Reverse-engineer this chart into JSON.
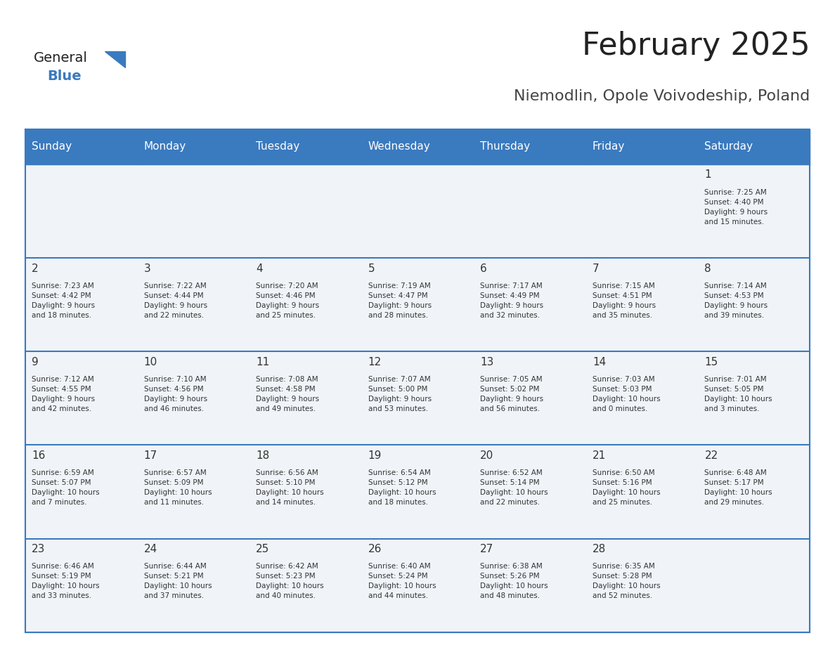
{
  "title": "February 2025",
  "subtitle": "Niemodlin, Opole Voivodeship, Poland",
  "header_bg_color": "#3a7abf",
  "header_text_color": "#ffffff",
  "cell_bg_color_odd": "#f0f4f8",
  "cell_bg_color_even": "#ffffff",
  "row_line_color": "#3a7abf",
  "text_color": "#333333",
  "days_of_week": [
    "Sunday",
    "Monday",
    "Tuesday",
    "Wednesday",
    "Thursday",
    "Friday",
    "Saturday"
  ],
  "weeks": [
    [
      {
        "day": "",
        "info": ""
      },
      {
        "day": "",
        "info": ""
      },
      {
        "day": "",
        "info": ""
      },
      {
        "day": "",
        "info": ""
      },
      {
        "day": "",
        "info": ""
      },
      {
        "day": "",
        "info": ""
      },
      {
        "day": "1",
        "info": "Sunrise: 7:25 AM\nSunset: 4:40 PM\nDaylight: 9 hours\nand 15 minutes."
      }
    ],
    [
      {
        "day": "2",
        "info": "Sunrise: 7:23 AM\nSunset: 4:42 PM\nDaylight: 9 hours\nand 18 minutes."
      },
      {
        "day": "3",
        "info": "Sunrise: 7:22 AM\nSunset: 4:44 PM\nDaylight: 9 hours\nand 22 minutes."
      },
      {
        "day": "4",
        "info": "Sunrise: 7:20 AM\nSunset: 4:46 PM\nDaylight: 9 hours\nand 25 minutes."
      },
      {
        "day": "5",
        "info": "Sunrise: 7:19 AM\nSunset: 4:47 PM\nDaylight: 9 hours\nand 28 minutes."
      },
      {
        "day": "6",
        "info": "Sunrise: 7:17 AM\nSunset: 4:49 PM\nDaylight: 9 hours\nand 32 minutes."
      },
      {
        "day": "7",
        "info": "Sunrise: 7:15 AM\nSunset: 4:51 PM\nDaylight: 9 hours\nand 35 minutes."
      },
      {
        "day": "8",
        "info": "Sunrise: 7:14 AM\nSunset: 4:53 PM\nDaylight: 9 hours\nand 39 minutes."
      }
    ],
    [
      {
        "day": "9",
        "info": "Sunrise: 7:12 AM\nSunset: 4:55 PM\nDaylight: 9 hours\nand 42 minutes."
      },
      {
        "day": "10",
        "info": "Sunrise: 7:10 AM\nSunset: 4:56 PM\nDaylight: 9 hours\nand 46 minutes."
      },
      {
        "day": "11",
        "info": "Sunrise: 7:08 AM\nSunset: 4:58 PM\nDaylight: 9 hours\nand 49 minutes."
      },
      {
        "day": "12",
        "info": "Sunrise: 7:07 AM\nSunset: 5:00 PM\nDaylight: 9 hours\nand 53 minutes."
      },
      {
        "day": "13",
        "info": "Sunrise: 7:05 AM\nSunset: 5:02 PM\nDaylight: 9 hours\nand 56 minutes."
      },
      {
        "day": "14",
        "info": "Sunrise: 7:03 AM\nSunset: 5:03 PM\nDaylight: 10 hours\nand 0 minutes."
      },
      {
        "day": "15",
        "info": "Sunrise: 7:01 AM\nSunset: 5:05 PM\nDaylight: 10 hours\nand 3 minutes."
      }
    ],
    [
      {
        "day": "16",
        "info": "Sunrise: 6:59 AM\nSunset: 5:07 PM\nDaylight: 10 hours\nand 7 minutes."
      },
      {
        "day": "17",
        "info": "Sunrise: 6:57 AM\nSunset: 5:09 PM\nDaylight: 10 hours\nand 11 minutes."
      },
      {
        "day": "18",
        "info": "Sunrise: 6:56 AM\nSunset: 5:10 PM\nDaylight: 10 hours\nand 14 minutes."
      },
      {
        "day": "19",
        "info": "Sunrise: 6:54 AM\nSunset: 5:12 PM\nDaylight: 10 hours\nand 18 minutes."
      },
      {
        "day": "20",
        "info": "Sunrise: 6:52 AM\nSunset: 5:14 PM\nDaylight: 10 hours\nand 22 minutes."
      },
      {
        "day": "21",
        "info": "Sunrise: 6:50 AM\nSunset: 5:16 PM\nDaylight: 10 hours\nand 25 minutes."
      },
      {
        "day": "22",
        "info": "Sunrise: 6:48 AM\nSunset: 5:17 PM\nDaylight: 10 hours\nand 29 minutes."
      }
    ],
    [
      {
        "day": "23",
        "info": "Sunrise: 6:46 AM\nSunset: 5:19 PM\nDaylight: 10 hours\nand 33 minutes."
      },
      {
        "day": "24",
        "info": "Sunrise: 6:44 AM\nSunset: 5:21 PM\nDaylight: 10 hours\nand 37 minutes."
      },
      {
        "day": "25",
        "info": "Sunrise: 6:42 AM\nSunset: 5:23 PM\nDaylight: 10 hours\nand 40 minutes."
      },
      {
        "day": "26",
        "info": "Sunrise: 6:40 AM\nSunset: 5:24 PM\nDaylight: 10 hours\nand 44 minutes."
      },
      {
        "day": "27",
        "info": "Sunrise: 6:38 AM\nSunset: 5:26 PM\nDaylight: 10 hours\nand 48 minutes."
      },
      {
        "day": "28",
        "info": "Sunrise: 6:35 AM\nSunset: 5:28 PM\nDaylight: 10 hours\nand 52 minutes."
      },
      {
        "day": "",
        "info": ""
      }
    ]
  ],
  "logo_text_general": "General",
  "logo_text_blue": "Blue",
  "logo_general_color": "#222222",
  "logo_blue_color": "#3a7abf",
  "title_color": "#222222",
  "subtitle_color": "#444444"
}
